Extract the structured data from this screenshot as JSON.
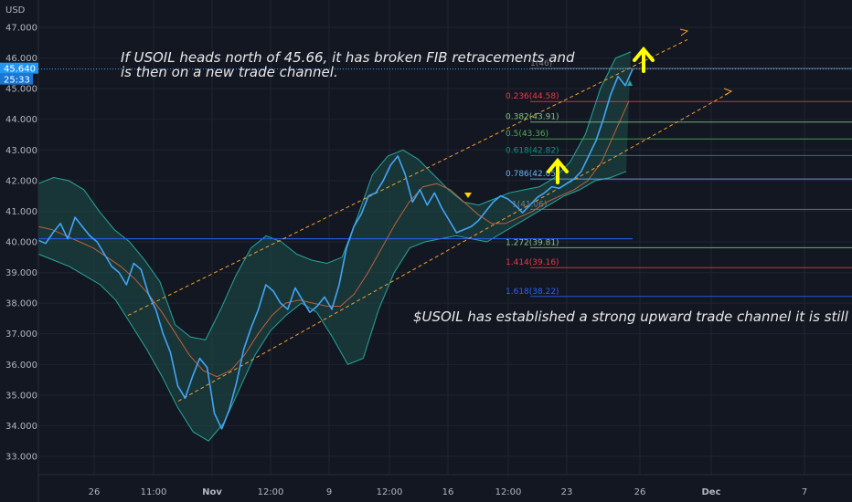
{
  "chart_data": {
    "type": "line",
    "symbol": "USOIL",
    "currency": "USD",
    "ylim": [
      32.6,
      47.4
    ],
    "y_ticks": [
      "47.000",
      "46.000",
      "45.000",
      "44.000",
      "43.000",
      "42.000",
      "41.000",
      "40.000",
      "39.000",
      "38.000",
      "37.000",
      "36.000",
      "35.000",
      "34.000",
      "33.000"
    ],
    "x_ticks": [
      "26",
      "11:00",
      "Nov",
      "12:00",
      "9",
      "12:00",
      "16",
      "12:00",
      "23",
      "26",
      "Dec",
      "7"
    ],
    "price_label": "45.640",
    "countdown": "25:33",
    "price": [
      40.05,
      39.95,
      40.3,
      40.6,
      40.1,
      40.8,
      40.5,
      40.2,
      40.0,
      39.6,
      39.2,
      39.0,
      38.6,
      39.3,
      39.1,
      38.3,
      37.8,
      37.0,
      36.4,
      35.3,
      34.9,
      35.6,
      36.2,
      35.9,
      34.4,
      33.9,
      34.5,
      35.4,
      36.5,
      37.2,
      37.8,
      38.6,
      38.4,
      38.0,
      37.8,
      38.5,
      38.1,
      37.7,
      37.9,
      38.2,
      37.8,
      38.6,
      39.8,
      40.5,
      40.9,
      41.5,
      41.6,
      42.0,
      42.5,
      42.8,
      42.2,
      41.3,
      41.7,
      41.2,
      41.6,
      41.1,
      40.7,
      40.3,
      40.4,
      40.5,
      40.7,
      41.0,
      41.3,
      41.5,
      41.4,
      41.2,
      40.95,
      41.2,
      41.45,
      41.6,
      41.8,
      41.75,
      41.9,
      42.05,
      42.3,
      42.8,
      43.3,
      44.0,
      44.8,
      45.4,
      45.1,
      45.64
    ],
    "price_y_extents": [
      34.0,
      46.0
    ],
    "ma": [
      40.5,
      40.4,
      40.2,
      40.0,
      39.8,
      39.5,
      39.2,
      38.8,
      38.3,
      37.7,
      37.0,
      36.3,
      35.8,
      35.6,
      35.8,
      36.3,
      37.0,
      37.6,
      38.0,
      38.1,
      38.0,
      37.9,
      37.9,
      38.3,
      39.0,
      39.8,
      40.6,
      41.3,
      41.8,
      41.9,
      41.7,
      41.3,
      40.9,
      40.6,
      40.6,
      40.8,
      41.0,
      41.3,
      41.5,
      41.7,
      42.0,
      42.6,
      43.6,
      44.6
    ],
    "bb_upper": [
      41.9,
      42.1,
      42.0,
      41.7,
      41.0,
      40.4,
      40.0,
      39.4,
      38.7,
      37.3,
      36.9,
      36.8,
      37.8,
      38.9,
      39.8,
      40.2,
      40.0,
      39.6,
      39.4,
      39.3,
      39.5,
      40.8,
      42.2,
      42.8,
      43.0,
      42.7,
      42.2,
      41.7,
      41.3,
      41.2,
      41.4,
      41.6,
      41.7,
      41.8,
      42.1,
      42.6,
      43.5,
      45.0,
      46.0,
      46.2
    ],
    "bb_lower": [
      39.6,
      39.4,
      39.2,
      38.9,
      38.6,
      38.1,
      37.3,
      36.5,
      35.6,
      34.6,
      33.8,
      33.5,
      34.1,
      35.2,
      36.3,
      37.1,
      37.6,
      38.0,
      37.7,
      36.9,
      36.0,
      36.2,
      37.8,
      39.0,
      39.8,
      40.0,
      40.1,
      40.2,
      40.1,
      40.0,
      40.3,
      40.6,
      40.9,
      41.2,
      41.5,
      41.7,
      42.0,
      42.1,
      42.3
    ],
    "fib_levels": [
      {
        "label": "1(46)",
        "value": 45.66,
        "color": "#787b86"
      },
      {
        "label": "0.236(44.58)",
        "value": 44.58,
        "color": "#f23645"
      },
      {
        "label": "0.382(43.91)",
        "value": 43.91,
        "color": "#81c784"
      },
      {
        "label": "0.5(43.36)",
        "value": 43.36,
        "color": "#4caf50"
      },
      {
        "label": "0.618(42.82)",
        "value": 42.82,
        "color": "#089981"
      },
      {
        "label": "0.786(42.05)",
        "value": 42.05,
        "color": "#64b5f6"
      },
      {
        "label": "1(41.06)",
        "value": 41.06,
        "color": "#787b86"
      },
      {
        "label": "1.272(39.81)",
        "value": 39.81,
        "color": "#81c784"
      },
      {
        "label": "1.414(39.16)",
        "value": 39.16,
        "color": "#f23645"
      },
      {
        "label": "1.618(38.22)",
        "value": 38.22,
        "color": "#2962ff"
      }
    ],
    "support_line_value": 40.1,
    "annotations": [
      "If USOIL heads north of 45.66, it has broken FIB retracements and",
      "is then on a new trade channel.",
      "$USOIL has established a strong upward trade channel it is still adher"
    ],
    "colors": {
      "background": "#131722",
      "grid": "#1f2430",
      "price": "#42a5f5",
      "ma": "#c0603a",
      "band_fill": "#1e5a55",
      "band_line": "#26a69a",
      "channel": "#f0a030",
      "arrow": "#ffff00"
    }
  }
}
